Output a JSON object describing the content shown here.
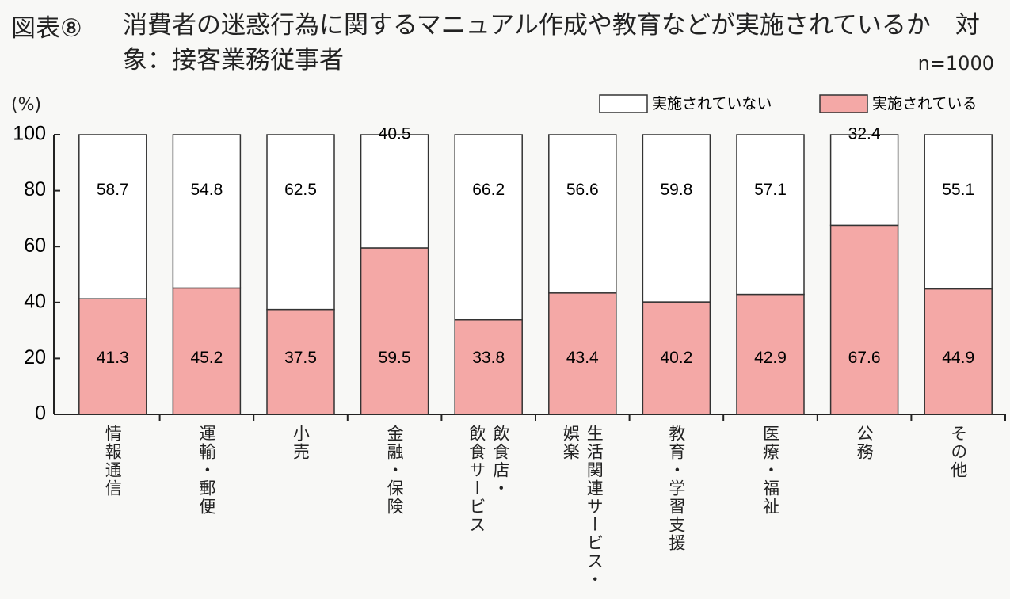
{
  "chart_data": {
    "type": "stacked_bar",
    "figure_label": "図表⑧",
    "title": "消費者の迷惑行為に関するマニュアル作成や教育などが実施されているか　対象：接客業務従事者",
    "note": "n=1000",
    "y_label": "(%)",
    "categories": [
      "情報通信",
      "運輸・郵便",
      "小売",
      "金融・保険",
      "飲食店・\n飲食サービス",
      "生活関連サービス・\n娯楽",
      "教育・学習支援",
      "医療・福祉",
      "公務",
      "その他"
    ],
    "series": [
      {
        "name": "実施されていない",
        "color": "#ffffff",
        "values": [
          58.7,
          54.8,
          62.5,
          40.5,
          66.2,
          56.6,
          59.8,
          57.1,
          32.4,
          55.1
        ]
      },
      {
        "name": "実施されている",
        "color": "#f4a8a6",
        "values": [
          41.3,
          45.2,
          37.5,
          59.5,
          33.8,
          43.4,
          40.2,
          42.9,
          67.6,
          44.9
        ]
      }
    ],
    "stack_order": "bottom_last_series",
    "ylim": [
      0,
      100
    ],
    "yticks": [
      0,
      20,
      40,
      60,
      80,
      100
    ]
  }
}
